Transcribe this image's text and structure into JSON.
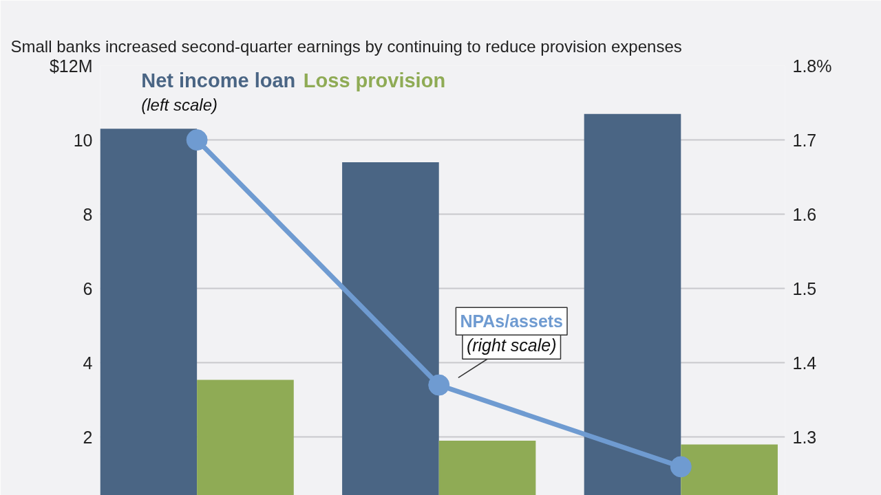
{
  "chart_data": {
    "type": "bar",
    "title": "Small banks increased second-quarter earnings by continuing to reduce provision expenses",
    "categories": [
      null,
      null,
      null
    ],
    "series": [
      {
        "name": "Net income loan",
        "color": "#4a6584",
        "values": [
          10.3,
          9.4,
          10.7
        ]
      },
      {
        "name": "Loss provision",
        "color": "#8fab55",
        "values": [
          3.54,
          1.9,
          1.8
        ]
      },
      {
        "name": "NPAs/assets",
        "type": "line",
        "axis": "y2",
        "color": "#6f9bd1",
        "marker": "circle",
        "values": [
          1.7,
          1.37,
          1.26
        ]
      }
    ],
    "ylim": [
      0.43,
      12
    ],
    "yticks": [
      2,
      4,
      6,
      8,
      10,
      {
        "value": 12,
        "label": "$12M"
      }
    ],
    "y2lim": [
      1.2215,
      1.8
    ],
    "y2ticks": [
      1.3,
      1.4,
      1.5,
      1.6,
      1.7,
      {
        "value": 1.8,
        "label": "1.8%"
      }
    ],
    "annotations": [
      "(left scale)",
      "(right scale)"
    ],
    "grid": "y",
    "legend": "top left"
  }
}
